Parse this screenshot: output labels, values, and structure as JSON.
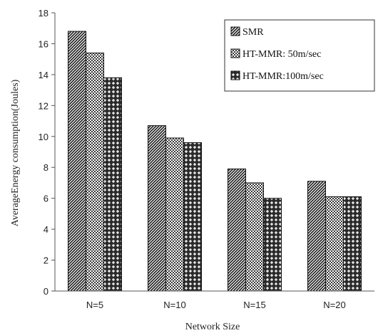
{
  "chart_data": {
    "type": "bar",
    "title": "",
    "xlabel": "Network Size",
    "ylabel": "AverageEnergy consumption(Joules)",
    "categories": [
      "N=5",
      "N=10",
      "N=15",
      "N=20"
    ],
    "series": [
      {
        "name": "SMR",
        "values": [
          16.8,
          10.7,
          7.9,
          7.1
        ],
        "pattern": "dense-diagonal"
      },
      {
        "name": "HT-MMR: 50m/sec",
        "values": [
          15.4,
          9.9,
          7.0,
          6.1
        ],
        "pattern": "checker"
      },
      {
        "name": "HT-MMR:100m/sec",
        "values": [
          13.8,
          9.6,
          6.0,
          6.1
        ],
        "pattern": "diamond"
      }
    ],
    "ylim": [
      0,
      18
    ],
    "yticks": [
      0,
      2,
      4,
      6,
      8,
      10,
      12,
      14,
      16,
      18
    ],
    "grid": false,
    "legend_position": "top-right",
    "colors": {
      "bar_dark": "#1a1a1a",
      "bar_light": "#ffffff",
      "axis": "#555555"
    }
  }
}
